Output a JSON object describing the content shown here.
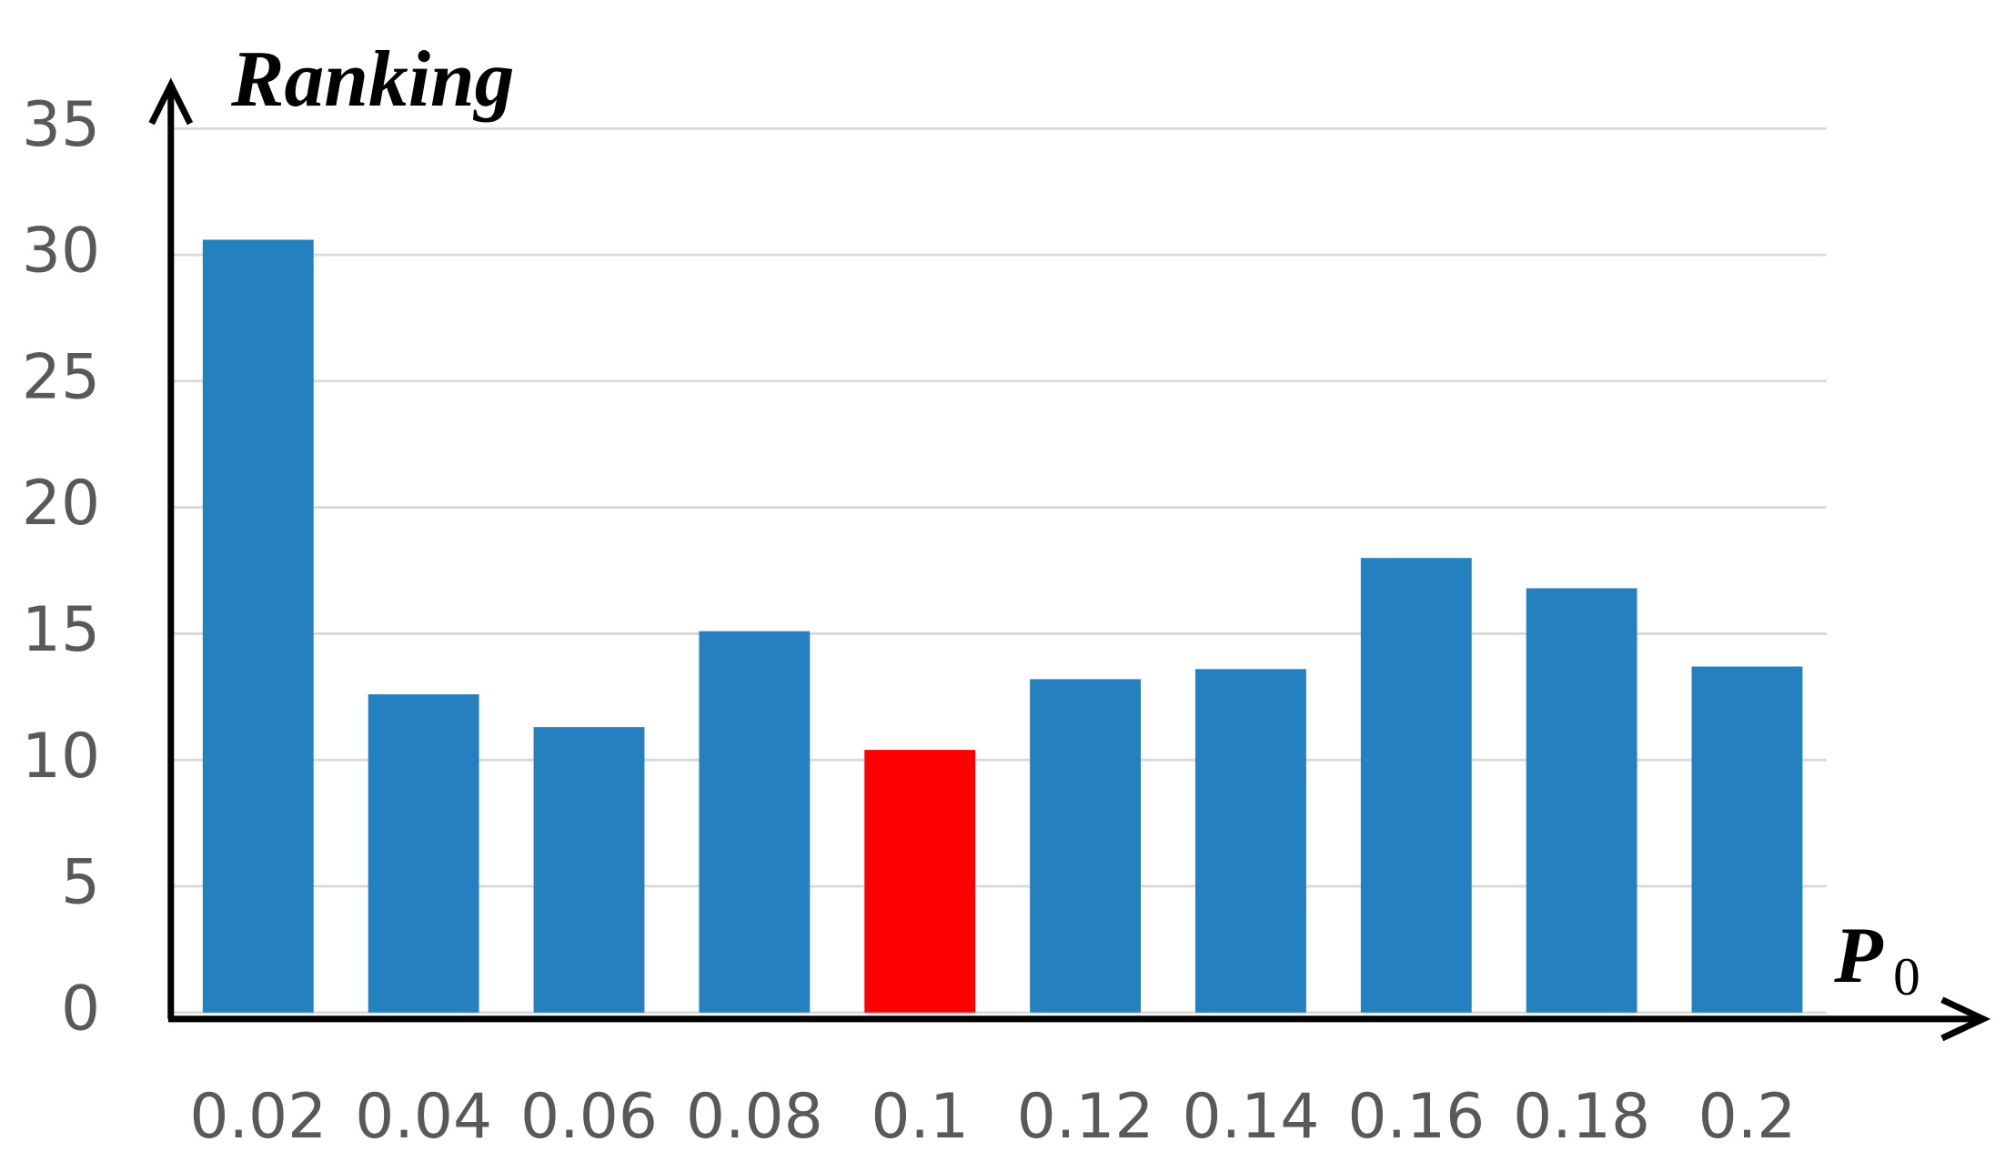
{
  "chart_data": {
    "type": "bar",
    "y_label": "Ranking",
    "x_label": "P",
    "x_label_subscript": "0",
    "categories": [
      "0.02",
      "0.04",
      "0.06",
      "0.08",
      "0.1",
      "0.12",
      "0.14",
      "0.16",
      "0.18",
      "0.2"
    ],
    "values": [
      30.6,
      12.6,
      11.3,
      15.1,
      10.4,
      13.2,
      13.6,
      18.0,
      16.8,
      13.7
    ],
    "colors": [
      "#2580c0",
      "#2580c0",
      "#2580c0",
      "#2580c0",
      "#ff0000",
      "#2580c0",
      "#2580c0",
      "#2580c0",
      "#2580c0",
      "#2580c0"
    ],
    "ylim": [
      0,
      35
    ],
    "yticks": [
      0,
      5,
      10,
      15,
      20,
      25,
      30,
      35
    ],
    "grid": true
  }
}
